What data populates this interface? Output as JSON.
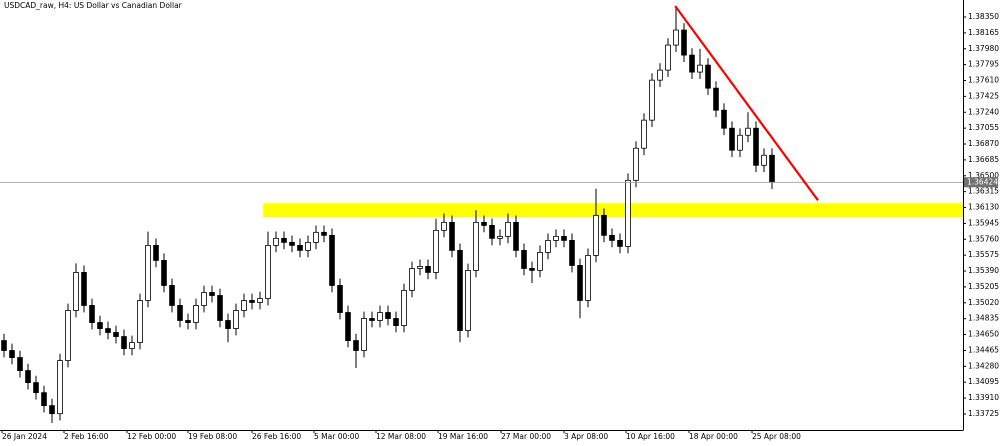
{
  "chart_data": {
    "type": "candlestick",
    "title": "USDCAD_raw, H4:  US Dollar vs Canadian Dollar",
    "x": [
      0,
      1,
      2,
      3,
      4,
      5,
      6,
      7,
      8,
      9,
      10,
      11,
      12,
      13,
      14,
      15,
      16,
      17,
      18,
      19,
      20,
      21,
      22,
      23,
      24,
      25,
      26,
      27,
      28,
      29,
      30,
      31,
      32,
      33,
      34,
      35,
      36,
      37,
      38,
      39,
      40,
      41,
      42,
      43,
      44,
      45,
      46,
      47,
      48,
      49,
      50,
      51,
      52,
      53,
      54,
      55,
      56,
      57,
      58,
      59,
      60,
      61,
      62,
      63,
      64,
      65,
      66,
      67,
      68,
      69,
      70,
      71,
      72,
      73,
      74,
      75,
      76,
      77,
      78,
      79,
      80,
      81,
      82,
      83,
      84,
      85,
      86,
      87,
      88,
      89,
      90,
      91,
      92,
      93,
      94,
      95,
      96
    ],
    "open": [
      1.3458,
      1.34464,
      1.34382,
      1.3423,
      1.3409,
      1.33973,
      1.33822,
      1.33728,
      1.34347,
      1.3493,
      1.35374,
      1.34989,
      1.3479,
      1.3472,
      1.34674,
      1.34627,
      1.34487,
      1.34557,
      1.35047,
      1.35689,
      1.35514,
      1.35222,
      1.34989,
      1.34814,
      1.3479,
      1.34989,
      1.3514,
      1.35105,
      1.34814,
      1.3472,
      1.3493,
      1.35047,
      1.35024,
      1.3507,
      1.35689,
      1.35771,
      1.35724,
      1.35689,
      1.35631,
      1.35724,
      1.35841,
      1.35806,
      1.35222,
      1.34907,
      1.3458,
      1.34464,
      1.34837,
      1.34814,
      1.34907,
      1.34837,
      1.34755,
      1.35164,
      1.3542,
      1.35444,
      1.35374,
      1.35864,
      1.35957,
      1.35631,
      1.34697,
      1.35397,
      1.35957,
      1.35922,
      1.35771,
      1.35794,
      1.35957,
      1.35631,
      1.3542,
      1.35398,
      1.35607,
      1.35747,
      1.35794,
      1.35747,
      1.35455,
      1.35047,
      1.35572,
      1.36039,
      1.35806,
      1.35747,
      1.35677,
      1.36447,
      1.36821,
      1.37148,
      1.37614,
      1.37731,
      1.38023,
      1.38198,
      1.37906,
      1.37708,
      1.37789,
      1.37521,
      1.37264,
      1.37054,
      1.36798,
      1.36972,
      1.37054,
      1.36622,
      1.36739
    ],
    "high": [
      1.3466,
      1.34544,
      1.34462,
      1.3431,
      1.3417,
      1.34053,
      1.33902,
      1.34427,
      1.3501,
      1.3548,
      1.35454,
      1.35069,
      1.3487,
      1.348,
      1.34754,
      1.34707,
      1.34637,
      1.35127,
      1.3585,
      1.35769,
      1.35594,
      1.35302,
      1.35069,
      1.34894,
      1.35069,
      1.3522,
      1.3522,
      1.35185,
      1.34894,
      1.3501,
      1.35127,
      1.35127,
      1.3515,
      1.3585,
      1.35851,
      1.35851,
      1.35804,
      1.35769,
      1.35804,
      1.35921,
      1.35921,
      1.35886,
      1.35302,
      1.34987,
      1.3466,
      1.34917,
      1.34917,
      1.34987,
      1.34987,
      1.34917,
      1.35244,
      1.355,
      1.35524,
      1.35524,
      1.36,
      1.3606,
      1.36037,
      1.35711,
      1.35477,
      1.361,
      1.36037,
      1.36002,
      1.35874,
      1.3606,
      1.36037,
      1.35711,
      1.355,
      1.35687,
      1.35827,
      1.35874,
      1.35874,
      1.35827,
      1.35535,
      1.35652,
      1.3635,
      1.36119,
      1.35886,
      1.35827,
      1.36527,
      1.36901,
      1.37228,
      1.37694,
      1.37811,
      1.38103,
      1.38455,
      1.38278,
      1.37986,
      1.3798,
      1.37869,
      1.37601,
      1.37344,
      1.37134,
      1.37052,
      1.3724,
      1.37134,
      1.36819,
      1.36819
    ],
    "low": [
      1.34384,
      1.34302,
      1.3415,
      1.3401,
      1.33893,
      1.33742,
      1.3362,
      1.33648,
      1.34267,
      1.3485,
      1.34909,
      1.3471,
      1.3464,
      1.34594,
      1.34547,
      1.34407,
      1.34407,
      1.34477,
      1.34967,
      1.35434,
      1.35142,
      1.34909,
      1.34734,
      1.3471,
      1.3471,
      1.34909,
      1.35025,
      1.34734,
      1.3456,
      1.3464,
      1.3485,
      1.34944,
      1.34944,
      1.3499,
      1.35609,
      1.35644,
      1.35609,
      1.35551,
      1.35551,
      1.35644,
      1.35726,
      1.35142,
      1.34827,
      1.345,
      1.3426,
      1.34384,
      1.34734,
      1.34734,
      1.34757,
      1.34675,
      1.34675,
      1.35084,
      1.3534,
      1.35294,
      1.35294,
      1.35784,
      1.35551,
      1.3456,
      1.34617,
      1.35317,
      1.35842,
      1.35691,
      1.35691,
      1.35714,
      1.35551,
      1.3534,
      1.3525,
      1.35318,
      1.35527,
      1.35667,
      1.35667,
      1.35375,
      1.3484,
      1.34967,
      1.35492,
      1.35726,
      1.35667,
      1.35597,
      1.35597,
      1.36367,
      1.36741,
      1.37068,
      1.37534,
      1.37651,
      1.37943,
      1.37826,
      1.37628,
      1.37628,
      1.37441,
      1.37184,
      1.36974,
      1.36718,
      1.36718,
      1.36892,
      1.36542,
      1.36542,
      1.36344
    ],
    "close": [
      1.34464,
      1.34382,
      1.3423,
      1.3409,
      1.33973,
      1.33822,
      1.33728,
      1.34347,
      1.3493,
      1.35374,
      1.34989,
      1.3479,
      1.3472,
      1.34674,
      1.34627,
      1.34487,
      1.34557,
      1.35047,
      1.35689,
      1.35514,
      1.35222,
      1.34989,
      1.34814,
      1.3479,
      1.34989,
      1.3514,
      1.35105,
      1.34814,
      1.3472,
      1.3493,
      1.35047,
      1.35024,
      1.3507,
      1.35689,
      1.35771,
      1.35724,
      1.35689,
      1.35631,
      1.35724,
      1.35841,
      1.35806,
      1.35222,
      1.34907,
      1.3458,
      1.34464,
      1.34837,
      1.34814,
      1.34907,
      1.34837,
      1.34755,
      1.35164,
      1.3542,
      1.35444,
      1.35374,
      1.35864,
      1.35957,
      1.35631,
      1.34697,
      1.35397,
      1.35957,
      1.35922,
      1.35771,
      1.35794,
      1.35957,
      1.35631,
      1.3542,
      1.35398,
      1.35607,
      1.35747,
      1.35794,
      1.35747,
      1.35455,
      1.35047,
      1.35572,
      1.36039,
      1.35806,
      1.35747,
      1.35677,
      1.36447,
      1.36821,
      1.37148,
      1.37614,
      1.37731,
      1.38023,
      1.38198,
      1.37906,
      1.37708,
      1.37789,
      1.37521,
      1.37264,
      1.37054,
      1.36798,
      1.36972,
      1.37054,
      1.36622,
      1.36739,
      1.36424
    ],
    "up_color": "#ffffff",
    "down_color": "#000000",
    "wick_color": "#000000",
    "xlim": [
      -0.5,
      119.875
    ],
    "xticks": [
      {
        "value": -0.25,
        "label": "26 Jan 2024"
      },
      {
        "value": 7.5,
        "label": "2 Feb 16:00"
      },
      {
        "value": 15.375,
        "label": "12 Feb 00:00"
      },
      {
        "value": 23,
        "label": "19 Feb 08:00"
      },
      {
        "value": 31,
        "label": "26 Feb 16:00"
      },
      {
        "value": 38.75,
        "label": "5 Mar 00:00"
      },
      {
        "value": 46.5,
        "label": "12 Mar 08:00"
      },
      {
        "value": 54.25,
        "label": "19 Mar 16:00"
      },
      {
        "value": 62.125,
        "label": "27 Mar 00:00"
      },
      {
        "value": 70,
        "label": "3 Apr 08:00"
      },
      {
        "value": 77.75,
        "label": "10 Apr 16:00"
      },
      {
        "value": 85.625,
        "label": "18 Apr 00:00"
      },
      {
        "value": 93.5,
        "label": "25 Apr 08:00"
      }
    ],
    "ylim": [
      1.33538,
      1.38548
    ],
    "yticks": [
      {
        "value": 1.3835,
        "label": "1.38350"
      },
      1.38165,
      {
        "value": 1.3798,
        "label": "1.37980"
      },
      1.37795,
      {
        "value": 1.3761,
        "label": "1.37610"
      },
      1.37425,
      {
        "value": 1.3724,
        "label": "1.37240"
      },
      1.37055,
      {
        "value": 1.3687,
        "label": "1.36870"
      },
      1.36685,
      {
        "value": 1.365,
        "label": "1.36500"
      },
      1.36315,
      {
        "value": 1.3613,
        "label": "1.36130"
      },
      1.35945,
      {
        "value": 1.3576,
        "label": "1.35760"
      },
      1.35575,
      {
        "value": 1.3539,
        "label": "1.35390"
      },
      1.35205,
      {
        "value": 1.3502,
        "label": "1.35020"
      },
      1.34835,
      {
        "value": 1.3465,
        "label": "1.34650"
      },
      1.34465,
      {
        "value": 1.3428,
        "label": "1.34280"
      },
      1.34095,
      {
        "value": 1.3391,
        "label": "1.33910"
      },
      1.33725
    ],
    "zone": {
      "x_start": 32.4,
      "y": [
        1.36015,
        1.36179
      ],
      "color": "#ffff00"
    },
    "trendline": {
      "x": [
        83.9,
        101.75
      ],
      "y": [
        1.38478,
        1.36214
      ],
      "color": "#ff0000"
    },
    "price_line_color": "#a0a0a0"
  }
}
